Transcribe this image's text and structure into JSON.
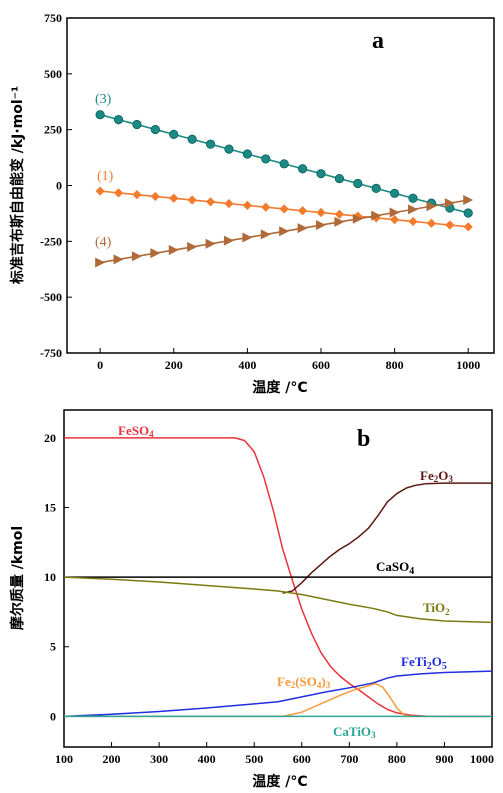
{
  "chart_data": [
    {
      "type": "line",
      "panel_label": "a",
      "ylabel": "标准吉布斯自由能变 /kJ·mol⁻¹",
      "xlabel": "温度 /°C",
      "xlim": [
        -90,
        1070
      ],
      "ylim": [
        -750,
        750
      ],
      "xticks": [
        "0",
        "200",
        "400",
        "600",
        "800",
        "1000"
      ],
      "yticks": [
        "-750",
        "-500",
        "-250",
        "0",
        "250",
        "500",
        "750"
      ],
      "x": [
        0,
        50,
        100,
        150,
        200,
        250,
        300,
        350,
        400,
        450,
        500,
        550,
        600,
        650,
        700,
        750,
        800,
        850,
        900,
        950,
        1000
      ],
      "series": [
        {
          "name": "(3)",
          "color": "#1a8a84",
          "marker": "circle",
          "values": [
            317,
            295,
            273,
            251,
            229,
            207,
            185,
            163,
            141,
            119,
            97,
            75,
            53,
            31,
            9,
            -13,
            -35,
            -57,
            -79,
            -101,
            -123
          ]
        },
        {
          "name": "(1)",
          "color": "#f47a2c",
          "marker": "diamond",
          "values": [
            -25,
            -33,
            -41,
            -49,
            -57,
            -65,
            -73,
            -81,
            -89,
            -97,
            -105,
            -113,
            -121,
            -129,
            -137,
            -145,
            -153,
            -161,
            -169,
            -177,
            -185
          ]
        },
        {
          "name": "(4)",
          "color": "#b06a3a",
          "marker": "triangle-right",
          "values": [
            -345,
            -331,
            -317,
            -303,
            -289,
            -275,
            -261,
            -247,
            -233,
            -219,
            -205,
            -191,
            -177,
            -163,
            -149,
            -135,
            -121,
            -107,
            -93,
            -79,
            -65
          ]
        }
      ],
      "grid": false
    },
    {
      "type": "line",
      "panel_label": "b",
      "ylabel": "摩尔质量 /kmol",
      "xlabel": "温度 /°C",
      "xlim": [
        100,
        1000
      ],
      "ylim": [
        -2.2,
        22
      ],
      "xticks": [
        "100",
        "200",
        "300",
        "400",
        "500",
        "600",
        "700",
        "800",
        "900",
        "1000"
      ],
      "yticks": [
        "0",
        "5",
        "10",
        "15",
        "20"
      ],
      "series": [
        {
          "name": "FeSO₄",
          "color": "#e8343c",
          "points": [
            [
              100,
              20
            ],
            [
              460,
              20
            ],
            [
              480,
              19.8
            ],
            [
              500,
              19
            ],
            [
              520,
              17.2
            ],
            [
              540,
              14.8
            ],
            [
              560,
              12
            ],
            [
              580,
              9.8
            ],
            [
              600,
              7.7
            ],
            [
              620,
              6
            ],
            [
              640,
              4.6
            ],
            [
              660,
              3.6
            ],
            [
              680,
              2.9
            ],
            [
              700,
              2.35
            ],
            [
              720,
              1.9
            ],
            [
              740,
              1.4
            ],
            [
              760,
              0.9
            ],
            [
              780,
              0.5
            ],
            [
              800,
              0.25
            ],
            [
              830,
              0.08
            ],
            [
              860,
              0.02
            ],
            [
              900,
              0
            ],
            [
              1000,
              0
            ]
          ]
        },
        {
          "name": "Fe₂O₃",
          "color": "#5b1a12",
          "points": [
            [
              560,
              8.85
            ],
            [
              580,
              9
            ],
            [
              600,
              9.6
            ],
            [
              620,
              10.3
            ],
            [
              640,
              10.9
            ],
            [
              660,
              11.5
            ],
            [
              680,
              12
            ],
            [
              700,
              12.4
            ],
            [
              720,
              12.9
            ],
            [
              740,
              13.5
            ],
            [
              760,
              14.4
            ],
            [
              780,
              15.4
            ],
            [
              800,
              16
            ],
            [
              820,
              16.4
            ],
            [
              840,
              16.6
            ],
            [
              860,
              16.7
            ],
            [
              900,
              16.75
            ],
            [
              1000,
              16.75
            ]
          ]
        },
        {
          "name": "CaSO₄",
          "color": "#000000",
          "points": [
            [
              100,
              10
            ],
            [
              1000,
              10
            ]
          ]
        },
        {
          "name": "TiO₂",
          "color": "#7a7a10",
          "points": [
            [
              100,
              10
            ],
            [
              200,
              9.85
            ],
            [
              300,
              9.65
            ],
            [
              400,
              9.4
            ],
            [
              500,
              9.15
            ],
            [
              550,
              9
            ],
            [
              600,
              8.75
            ],
            [
              650,
              8.4
            ],
            [
              700,
              8.05
            ],
            [
              750,
              7.75
            ],
            [
              780,
              7.5
            ],
            [
              800,
              7.25
            ],
            [
              850,
              7
            ],
            [
              900,
              6.85
            ],
            [
              1000,
              6.75
            ]
          ]
        },
        {
          "name": "FeTi₂O₅",
          "color": "#1e2ee0",
          "points": [
            [
              100,
              0
            ],
            [
              200,
              0.15
            ],
            [
              300,
              0.35
            ],
            [
              400,
              0.6
            ],
            [
              500,
              0.9
            ],
            [
              550,
              1.05
            ],
            [
              600,
              1.4
            ],
            [
              650,
              1.75
            ],
            [
              700,
              2.05
            ],
            [
              750,
              2.4
            ],
            [
              780,
              2.75
            ],
            [
              800,
              2.9
            ],
            [
              850,
              3.05
            ],
            [
              900,
              3.15
            ],
            [
              1000,
              3.25
            ]
          ]
        },
        {
          "name": "Fe₂(SO₄)₃",
          "color": "#f79a3a",
          "points": [
            [
              100,
              0
            ],
            [
              560,
              0
            ],
            [
              600,
              0.3
            ],
            [
              640,
              0.9
            ],
            [
              680,
              1.5
            ],
            [
              710,
              1.9
            ],
            [
              740,
              2.2
            ],
            [
              755,
              2.35
            ],
            [
              770,
              2.1
            ],
            [
              785,
              1.4
            ],
            [
              800,
              0.6
            ],
            [
              815,
              0.1
            ],
            [
              830,
              0
            ],
            [
              1000,
              0
            ]
          ]
        },
        {
          "name": "CaTiO₃",
          "color": "#2aa59a",
          "points": [
            [
              100,
              0
            ],
            [
              1000,
              0
            ]
          ]
        }
      ],
      "grid": false
    }
  ],
  "labels_a": {
    "s3": "(3)",
    "s1": "(1)",
    "s4": "(4)"
  },
  "labels_b": {
    "feso4_label": "FeSO",
    "feso4_sub": "4",
    "fe2o3_a": "Fe",
    "fe2o3_b": "2",
    "fe2o3_c": "O",
    "fe2o3_d": "3",
    "caso4_a": "CaSO",
    "caso4_b": "4",
    "tio2_a": "TiO",
    "tio2_b": "2",
    "feti_a": "FeTi",
    "feti_b": "2",
    "feti_c": "O",
    "feti_d": "5",
    "fe2so4_a": "Fe",
    "fe2so4_b": "2",
    "fe2so4_c": "(SO",
    "fe2so4_d": "4",
    "fe2so4_e": ")",
    "fe2so4_f": "3",
    "catio3_a": "CaTiO",
    "catio3_b": "3"
  }
}
